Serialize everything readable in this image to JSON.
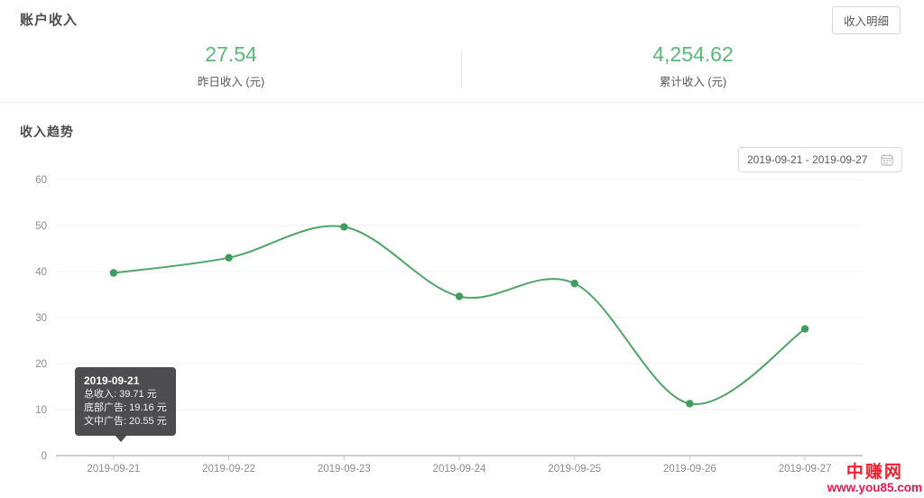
{
  "header": {
    "title": "账户收入",
    "details_button": "收入明细"
  },
  "stats": {
    "yesterday": {
      "value": "27.54",
      "label": "昨日收入 (元)"
    },
    "total": {
      "value": "4,254.62",
      "label": "累计收入 (元)"
    }
  },
  "trend": {
    "title": "收入趋势",
    "date_range": "2019-09-21 - 2019-09-27"
  },
  "tooltip": {
    "title": "2019-09-21",
    "lines": [
      "总收入: 39.71 元",
      "底部广告: 19.16 元",
      "文中广告: 20.55 元"
    ]
  },
  "watermark": {
    "line1": "中赚网",
    "line2": "www.you85.com"
  },
  "colors": {
    "stat_green": "#5cb87a",
    "line_green": "#50a467",
    "dot_green": "#3f9e5f",
    "grid": "#f0f0f0",
    "axis": "#999999",
    "axis_label": "#8c8c8c",
    "watermark_red": "#f0212e",
    "watermark_url_red": "#e8174f"
  },
  "chart_data": {
    "type": "line",
    "title": "收入趋势",
    "categories": [
      "2019-09-21",
      "2019-09-22",
      "2019-09-23",
      "2019-09-24",
      "2019-09-25",
      "2019-09-26",
      "2019-09-27"
    ],
    "values": [
      39.71,
      43.0,
      49.7,
      34.6,
      37.4,
      11.3,
      27.54
    ],
    "series_name": "总收入",
    "xlabel": "",
    "ylabel": "",
    "ylim": [
      0,
      60
    ],
    "ytick_step": 10,
    "grid": true,
    "smooth": true,
    "legend": "none",
    "tooltip_point": {
      "category": "2019-09-21",
      "total": 39.71,
      "bottom_ad": 19.16,
      "inline_ad": 20.55
    }
  }
}
